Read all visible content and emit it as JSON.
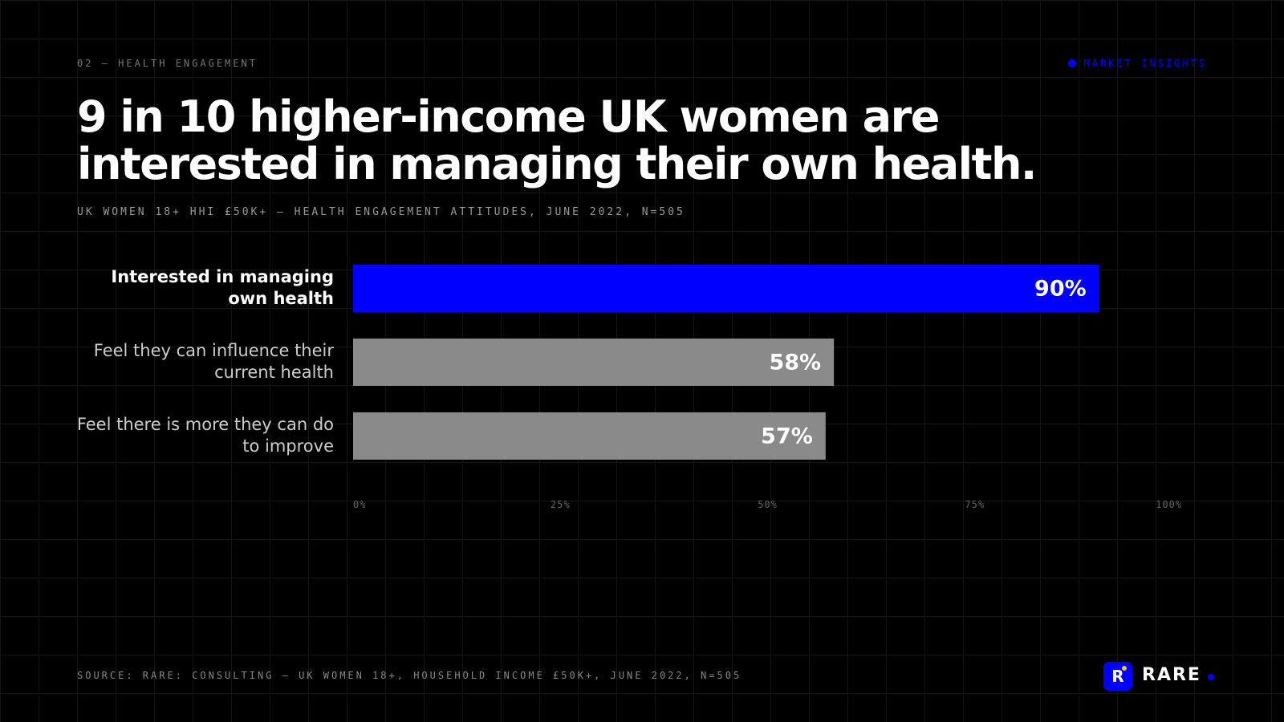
{
  "header": {
    "eyebrow": "02 — HEALTH ENGAGEMENT",
    "tag": "MARKET INSIGHTS",
    "title": "9 in 10 higher-income UK women are interested in managing their own health.",
    "subtitle": "UK WOMEN 18+ HHI £50K+ — HEALTH ENGAGEMENT ATTITUDES, JUNE 2022, N=505"
  },
  "chart_data": {
    "type": "bar",
    "orientation": "horizontal",
    "categories": [
      "Interested in managing own health",
      "Feel they can influence their current health",
      "Feel there is more they can do to improve"
    ],
    "values": [
      90,
      58,
      57
    ],
    "value_labels": [
      "90%",
      "58%",
      "57%"
    ],
    "colors": [
      "#0000ff",
      "#8a8a8a",
      "#8a8a8a"
    ],
    "xlim": [
      0,
      100
    ],
    "xticks": [
      {
        "value": 0,
        "label": "0%"
      },
      {
        "value": 25,
        "label": "25%"
      },
      {
        "value": 50,
        "label": "50%"
      },
      {
        "value": 75,
        "label": "75%"
      },
      {
        "value": 100,
        "label": "100%"
      }
    ]
  },
  "footer": {
    "source": "SOURCE: RARE: CONSULTING — UK WOMEN 18+, HOUSEHOLD INCOME £50K+, JUNE 2022, N=505",
    "logo_letter": "R",
    "brand": "RARE"
  }
}
